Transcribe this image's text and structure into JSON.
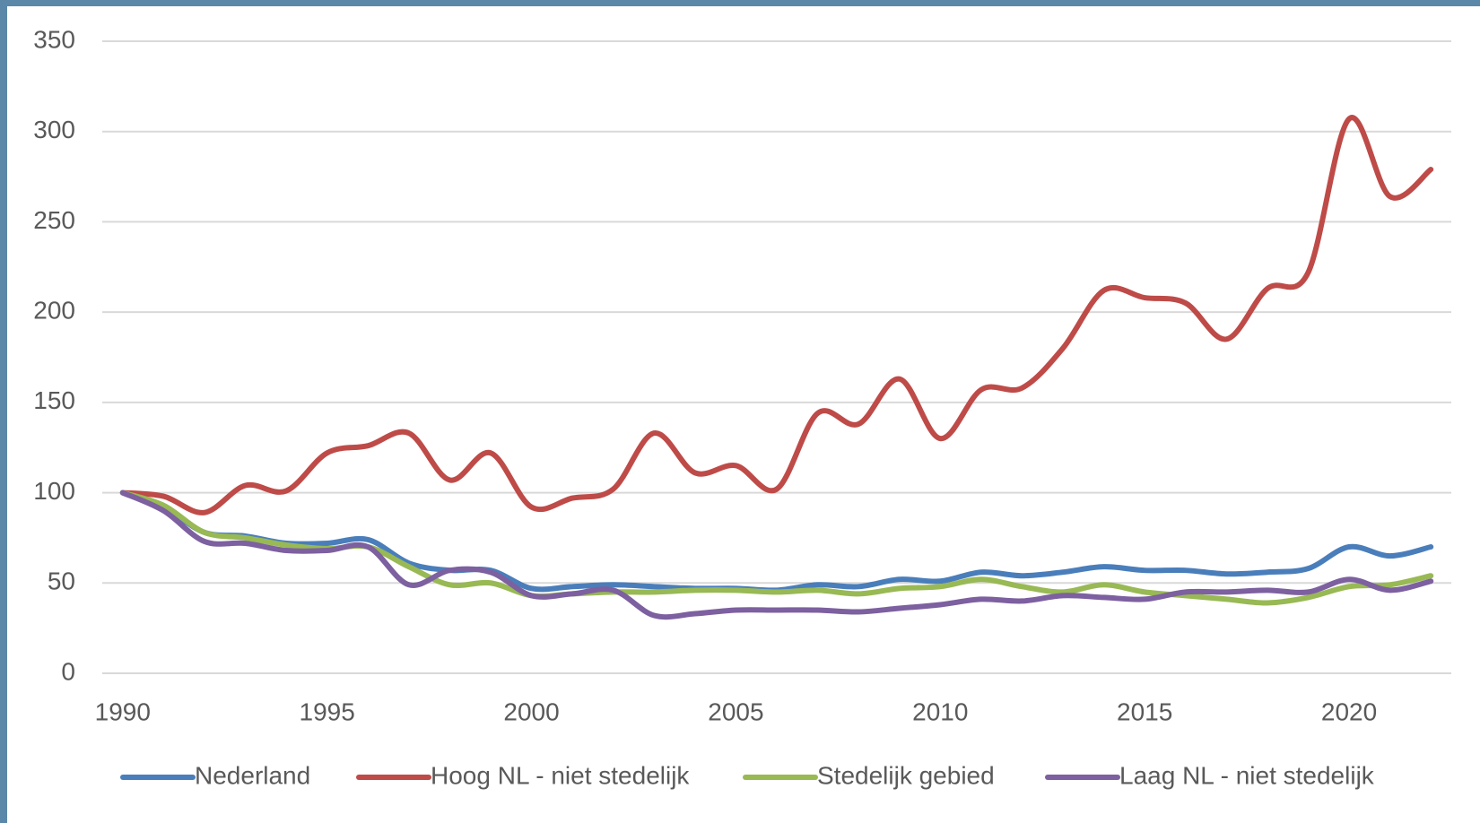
{
  "chart_data": {
    "type": "line",
    "x": [
      1990,
      1991,
      1992,
      1993,
      1994,
      1995,
      1996,
      1997,
      1998,
      1999,
      2000,
      2001,
      2002,
      2003,
      2004,
      2005,
      2006,
      2007,
      2008,
      2009,
      2010,
      2011,
      2012,
      2013,
      2014,
      2015,
      2016,
      2017,
      2018,
      2019,
      2020,
      2021,
      2022
    ],
    "series": [
      {
        "name": "Nederland",
        "color": "#4a7ebb",
        "values": [
          100,
          92,
          78,
          76,
          72,
          72,
          74,
          61,
          57,
          57,
          47,
          48,
          49,
          48,
          47,
          47,
          46,
          49,
          48,
          52,
          51,
          56,
          54,
          56,
          59,
          57,
          57,
          55,
          56,
          58,
          70,
          65,
          70
        ]
      },
      {
        "name": "Hoog NL - niet stedelijk",
        "color": "#be4b48",
        "values": [
          100,
          98,
          89,
          104,
          101,
          122,
          126,
          133,
          107,
          122,
          92,
          97,
          102,
          133,
          111,
          115,
          102,
          144,
          138,
          163,
          130,
          157,
          158,
          180,
          212,
          208,
          205,
          185,
          213,
          222,
          307,
          264,
          279
        ]
      },
      {
        "name": "Stedelijk gebied",
        "color": "#98b954",
        "values": [
          100,
          93,
          78,
          75,
          71,
          69,
          70,
          59,
          49,
          50,
          43,
          44,
          45,
          45,
          46,
          46,
          45,
          46,
          44,
          47,
          48,
          52,
          48,
          45,
          49,
          45,
          43,
          41,
          39,
          42,
          48,
          49,
          54
        ]
      },
      {
        "name": "Laag NL - niet stedelijk",
        "color": "#7d60a0",
        "values": [
          100,
          90,
          73,
          72,
          68,
          68,
          70,
          49,
          57,
          56,
          43,
          44,
          46,
          32,
          33,
          35,
          35,
          35,
          34,
          36,
          38,
          41,
          40,
          43,
          42,
          41,
          45,
          45,
          46,
          45,
          52,
          46,
          51
        ]
      }
    ],
    "xlim": [
      1989.5,
      2022.5
    ],
    "xticks": [
      1990,
      1995,
      2000,
      2005,
      2010,
      2015,
      2020
    ],
    "ylim": [
      0,
      350
    ],
    "yticks": [
      0,
      50,
      100,
      150,
      200,
      250,
      300,
      350
    ],
    "grid": true,
    "legend": "bottom"
  }
}
